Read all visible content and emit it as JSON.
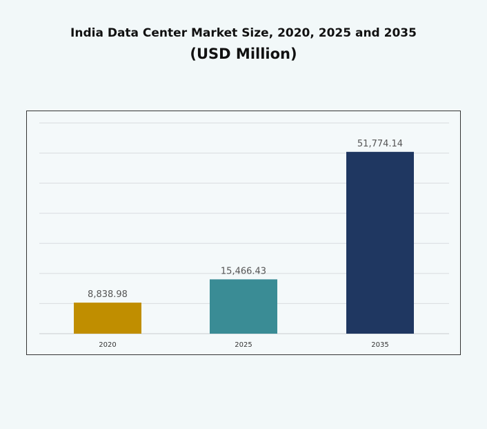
{
  "title": "India Data Center Market Size, 2020, 2025 and 2035",
  "subtitle": "(USD Million)",
  "chart_data": {
    "type": "bar",
    "title": "India Data Center Market Size, 2020, 2025 and 2035",
    "subtitle": "(USD Million)",
    "categories": [
      "2020",
      "2025",
      "2035"
    ],
    "values": [
      8838.98,
      15466.43,
      51774.14
    ],
    "value_labels": [
      "8,838.98",
      "15,466.43",
      "51,774.14"
    ],
    "colors": [
      "#c08e00",
      "#3a8c95",
      "#1f3761"
    ],
    "ylim": [
      0,
      60000
    ],
    "grid": true,
    "legend": "none"
  }
}
